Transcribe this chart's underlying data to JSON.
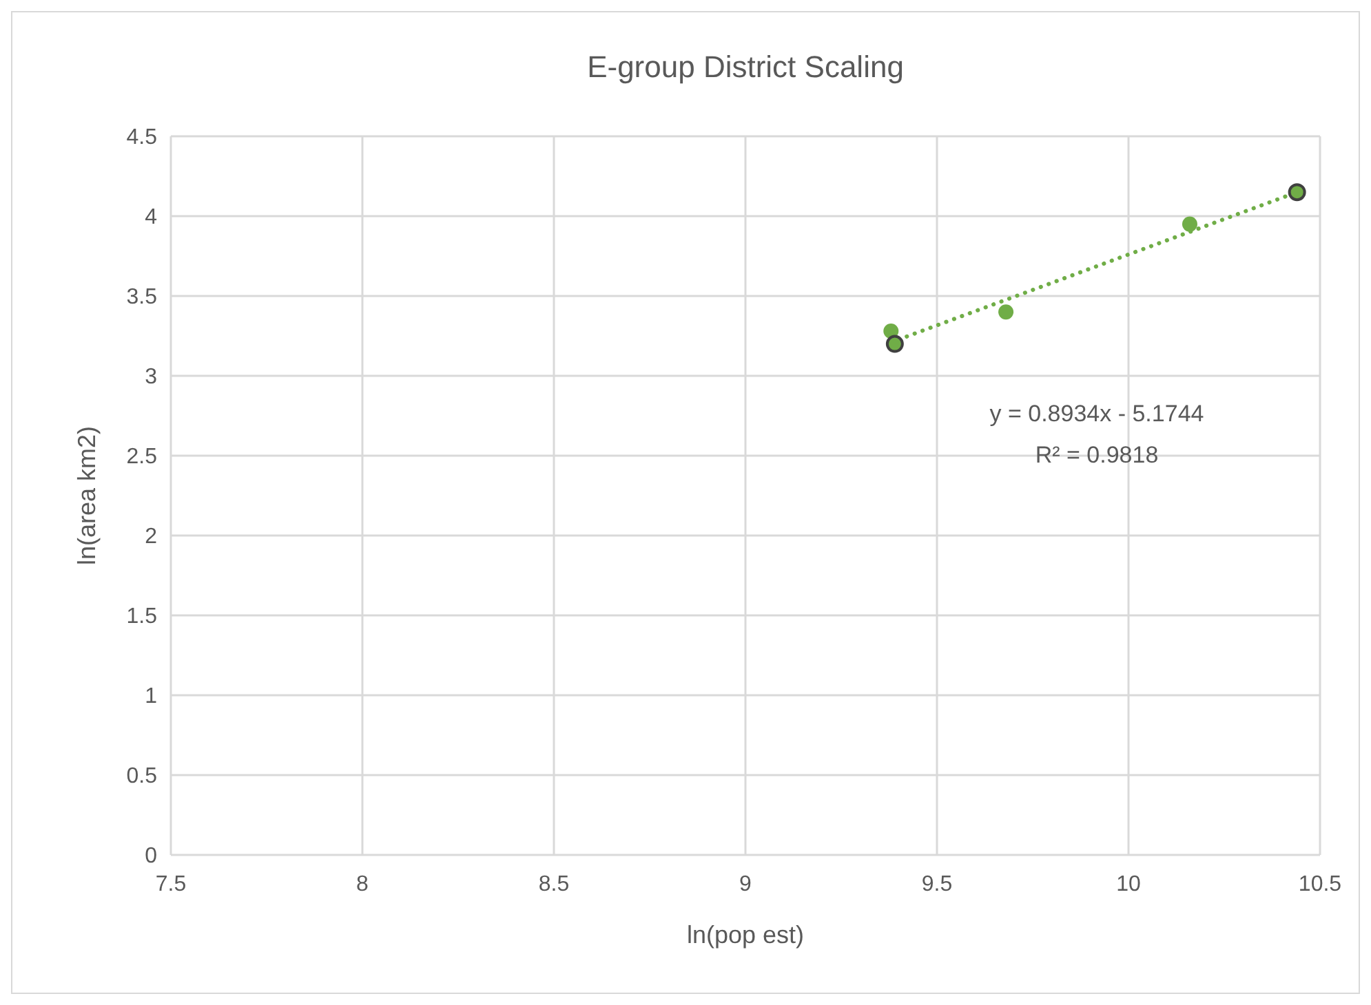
{
  "chart_data": {
    "type": "scatter",
    "title": "E-group District Scaling",
    "xlabel": "ln(pop est)",
    "ylabel": "ln(area km2)",
    "series": [
      {
        "color": "#70ad47",
        "x": [
          9.38,
          9.68,
          10.16
        ],
        "values": [
          3.28,
          3.4,
          3.95
        ]
      },
      {
        "color": "#70ad47",
        "x": [
          9.39,
          10.44
        ],
        "values": [
          3.2,
          4.15
        ]
      },
      {
        "type": "line",
        "color": "#70ad47",
        "x": [
          9.38,
          10.44
        ],
        "values": [
          3.21,
          4.15
        ],
        "line_style": "dotted",
        "marker": "none"
      }
    ],
    "xlim": [
      7.5,
      10.5
    ],
    "xticks": [
      7.5,
      8,
      8.5,
      9,
      9.5,
      10,
      10.5
    ],
    "ylim": [
      0,
      4.5
    ],
    "yticks": [
      0,
      0.5,
      1,
      1.5,
      2,
      2.5,
      3,
      3.5,
      4,
      4.5
    ],
    "grid": true,
    "marker": "circle",
    "annotations": [
      "y = 0.8934x - 5.1744",
      "R² = 0.9818"
    ]
  }
}
